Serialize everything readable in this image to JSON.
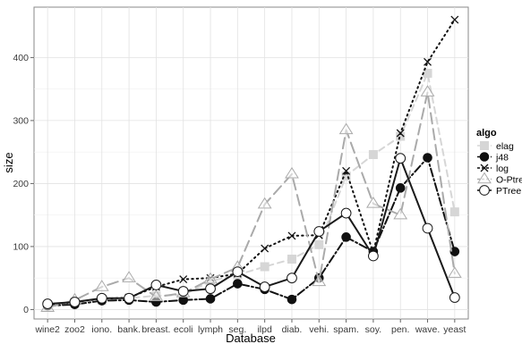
{
  "chart_data": {
    "type": "line",
    "xlabel": "Database",
    "ylabel": "size",
    "ylim": [
      -15,
      480
    ],
    "yticks": [
      0,
      100,
      200,
      300,
      400
    ],
    "grid": true,
    "legend_position": "right",
    "legend_title": "algo",
    "categories": [
      "wine2",
      "zoo2",
      "iono.",
      "bank.",
      "breast.",
      "ecoli",
      "lymph",
      "seg.",
      "ilpd",
      "diab.",
      "vehi.",
      "spam.",
      "soy.",
      "pen.",
      "wave.",
      "yeast"
    ],
    "series": [
      {
        "name": "elag",
        "marker": "square",
        "color": "#d6d6d6",
        "dash": "7,5",
        "values": [
          5,
          12,
          15,
          18,
          22,
          23,
          45,
          55,
          68,
          80,
          103,
          212,
          246,
          275,
          375,
          155
        ]
      },
      {
        "name": "j48",
        "marker": "filled-circle",
        "color": "#111111",
        "dash": "9,3,2,3",
        "values": [
          6,
          8,
          14,
          15,
          12,
          15,
          17,
          41,
          32,
          16,
          50,
          115,
          92,
          193,
          241,
          92
        ]
      },
      {
        "name": "log",
        "marker": "x-cross",
        "color": "#111111",
        "dash": "1.5,4",
        "values": [
          7,
          12,
          17,
          19,
          36,
          48,
          50,
          57,
          97,
          117,
          118,
          220,
          90,
          280,
          393,
          460
        ]
      },
      {
        "name": "O-Ptree",
        "marker": "triangle",
        "color": "#aaaaaa",
        "dash": "12,6",
        "values": [
          3,
          15,
          36,
          50,
          20,
          26,
          48,
          67,
          167,
          215,
          44,
          285,
          168,
          150,
          345,
          57
        ]
      },
      {
        "name": "PTree",
        "marker": "open-circle",
        "color": "#1a1a1a",
        "dash": "",
        "values": [
          9,
          12,
          18,
          18,
          39,
          29,
          33,
          60,
          36,
          50,
          124,
          153,
          85,
          240,
          129,
          19
        ]
      }
    ]
  }
}
